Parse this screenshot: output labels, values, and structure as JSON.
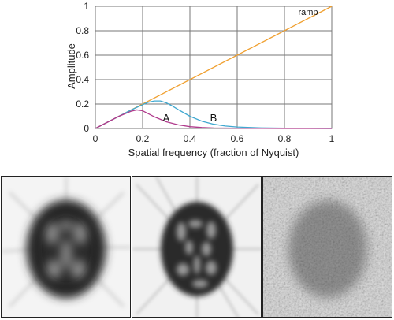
{
  "chart_data": {
    "type": "line",
    "xlabel": "Spatial frequency (fraction of Nyquist)",
    "ylabel": "Amplitude",
    "xlim": [
      0,
      1
    ],
    "ylim": [
      0,
      1
    ],
    "xticks": [
      "0",
      "0.2",
      "0.4",
      "0.6",
      "0.8",
      "1"
    ],
    "yticks": [
      "0",
      "0.2",
      "0.4",
      "0.6",
      "0.8",
      "1"
    ],
    "grid": true,
    "series": [
      {
        "name": "ramp",
        "color": "#f0a030",
        "x": [
          0,
          1
        ],
        "y": [
          0,
          1
        ]
      },
      {
        "name": "B",
        "color": "#40a8d0",
        "x": [
          0,
          0.05,
          0.1,
          0.15,
          0.2,
          0.225,
          0.25,
          0.275,
          0.3,
          0.325,
          0.35,
          0.4,
          0.45,
          0.5,
          0.55,
          0.6,
          0.7,
          0.8,
          0.9,
          1.0
        ],
        "y": [
          0,
          0.05,
          0.1,
          0.15,
          0.195,
          0.215,
          0.225,
          0.225,
          0.21,
          0.185,
          0.155,
          0.1,
          0.06,
          0.035,
          0.02,
          0.012,
          0.005,
          0.002,
          0.001,
          0
        ]
      },
      {
        "name": "A",
        "color": "#b03a8c",
        "x": [
          0,
          0.05,
          0.1,
          0.15,
          0.175,
          0.2,
          0.225,
          0.25,
          0.3,
          0.35,
          0.4,
          0.45,
          0.5,
          0.6,
          0.7,
          0.8,
          0.9,
          1.0
        ],
        "y": [
          0,
          0.05,
          0.1,
          0.14,
          0.152,
          0.145,
          0.12,
          0.095,
          0.055,
          0.03,
          0.015,
          0.008,
          0.004,
          0.002,
          0.001,
          0,
          0,
          0
        ]
      }
    ],
    "annotations": [
      {
        "text": "ramp",
        "x": 0.9,
        "y": 0.955
      },
      {
        "text": "A",
        "x": 0.3,
        "y": 0.085
      },
      {
        "text": "B",
        "x": 0.5,
        "y": 0.085
      }
    ]
  },
  "images": [
    {
      "name": "reconstruction-filter-a"
    },
    {
      "name": "reconstruction-filter-b"
    },
    {
      "name": "reconstruction-ramp"
    }
  ]
}
